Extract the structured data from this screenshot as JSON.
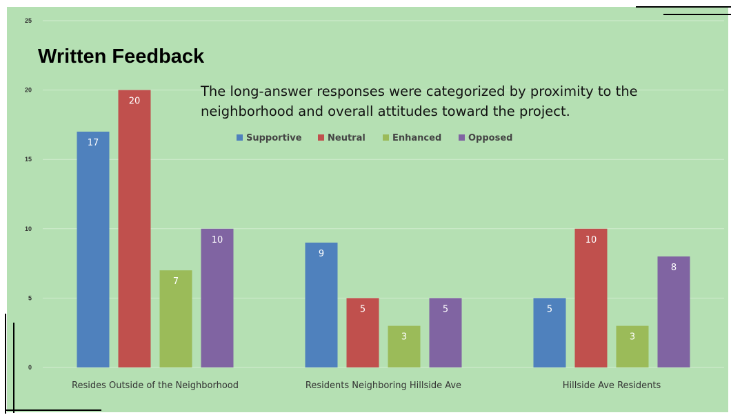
{
  "slide": {
    "title": "Written Feedback",
    "subtitle": "The long-answer responses were categorized by proximity to the neighborhood and overall attitudes toward the project.",
    "background_color": "#b5e0b3",
    "decor_color": "#000000"
  },
  "chart_data": {
    "type": "bar",
    "categories": [
      "Resides Outside of the Neighborhood",
      "Residents Neighboring Hillside Ave",
      "Hillside Ave Residents"
    ],
    "series": [
      {
        "name": "Supportive",
        "color": "#4f81bd",
        "values": [
          17,
          9,
          5
        ]
      },
      {
        "name": "Neutral",
        "color": "#c0504d",
        "values": [
          20,
          5,
          10
        ]
      },
      {
        "name": "Enhanced",
        "color": "#9bbb59",
        "values": [
          7,
          3,
          3
        ]
      },
      {
        "name": "Opposed",
        "color": "#8064a2",
        "values": [
          10,
          5,
          8
        ]
      }
    ],
    "yticks": [
      0,
      5,
      10,
      15,
      20,
      25
    ],
    "ylim": [
      0,
      25
    ],
    "grid": true,
    "legend_position": "top",
    "data_labels": true
  }
}
